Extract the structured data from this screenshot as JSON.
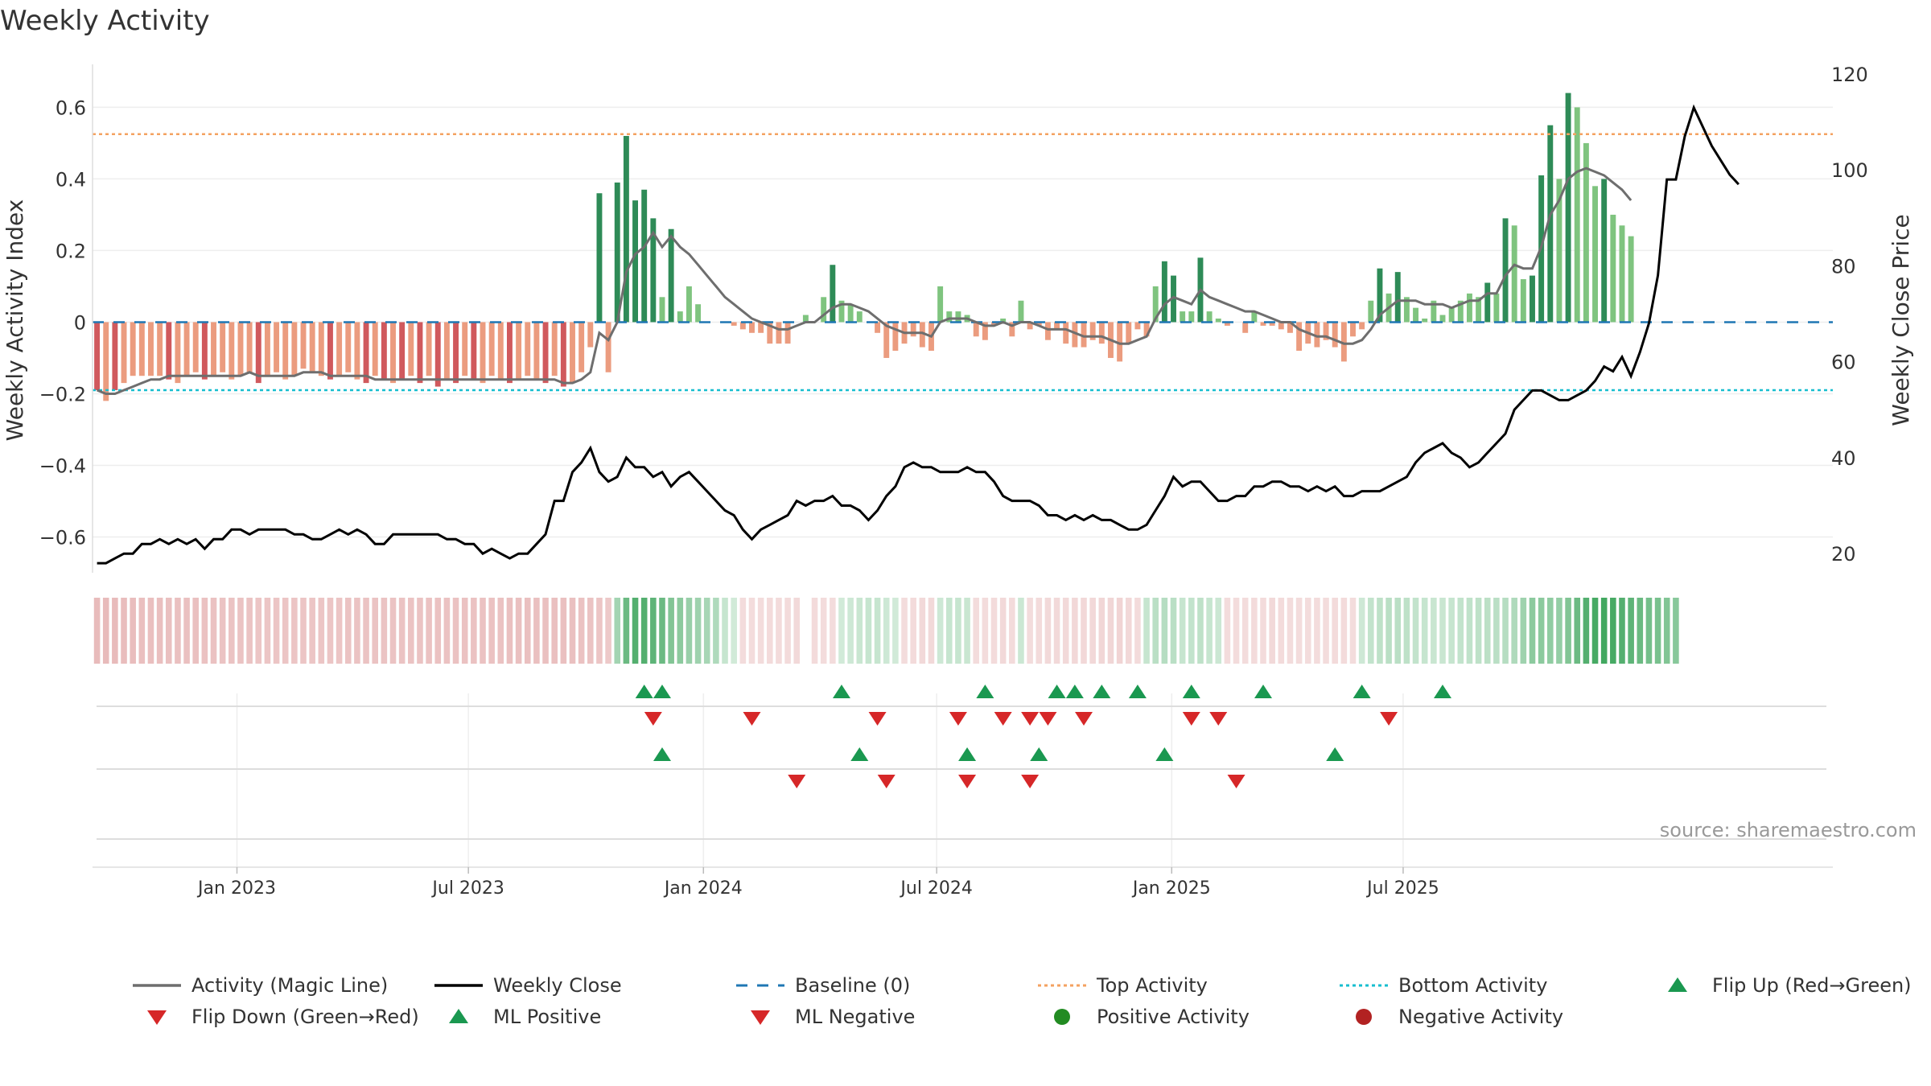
{
  "chart_data": {
    "type": "bar",
    "title": "Weekly Activity",
    "ylabel": "Weekly Activity Index",
    "y2label": "Weekly Close Price",
    "ylim": [
      -0.7,
      0.72
    ],
    "y2lim": [
      16,
      122
    ],
    "yticks": [
      -0.6,
      -0.4,
      -0.2,
      0,
      0.2,
      0.4,
      0.6
    ],
    "ytick_labels": [
      "−0.6",
      "−0.4",
      "−0.2",
      "0",
      "0.2",
      "0.4",
      "0.6"
    ],
    "y2ticks": [
      20,
      40,
      60,
      80,
      100,
      120
    ],
    "y2tick_labels": [
      "20",
      "40",
      "60",
      "80",
      "100",
      "120"
    ],
    "x_weeks": 194,
    "first_week": "2022-09-12",
    "xticks": [
      {
        "label": "Jan 2023",
        "week": 16.1
      },
      {
        "label": "Jul 2023",
        "week": 41.9
      },
      {
        "label": "Jan 2024",
        "week": 68.1
      },
      {
        "label": "Jul 2024",
        "week": 94.1
      },
      {
        "label": "Jan 2025",
        "week": 120.3
      },
      {
        "label": "Jul 2025",
        "week": 146.1
      }
    ],
    "top_activity": 0.525,
    "bottom_activity": -0.19,
    "baseline": 0,
    "activity": [
      -0.19,
      -0.22,
      -0.19,
      -0.17,
      -0.15,
      -0.15,
      -0.15,
      -0.15,
      -0.16,
      -0.17,
      -0.15,
      -0.14,
      -0.16,
      -0.15,
      -0.14,
      -0.16,
      -0.15,
      -0.14,
      -0.17,
      -0.15,
      -0.14,
      -0.16,
      -0.15,
      -0.13,
      -0.14,
      -0.15,
      -0.16,
      -0.15,
      -0.14,
      -0.16,
      -0.17,
      -0.15,
      -0.16,
      -0.17,
      -0.16,
      -0.15,
      -0.17,
      -0.15,
      -0.18,
      -0.16,
      -0.17,
      -0.15,
      -0.16,
      -0.17,
      -0.15,
      -0.16,
      -0.17,
      -0.16,
      -0.15,
      -0.16,
      -0.17,
      -0.15,
      -0.18,
      -0.17,
      -0.14,
      -0.07,
      0.36,
      -0.14,
      0.39,
      0.52,
      0.34,
      0.37,
      0.29,
      0.07,
      0.26,
      0.03,
      0.1,
      0.05,
      0,
      0,
      0,
      -0.01,
      -0.02,
      -0.03,
      -0.03,
      -0.06,
      -0.06,
      -0.06,
      0,
      0.02,
      0,
      0.07,
      0.16,
      0.06,
      0.05,
      0.03,
      0,
      -0.03,
      -0.1,
      -0.08,
      -0.06,
      -0.04,
      -0.07,
      -0.08,
      0.1,
      0.03,
      0.03,
      0.02,
      -0.04,
      -0.05,
      -0.01,
      0.01,
      -0.04,
      0.06,
      -0.02,
      -0.01,
      -0.05,
      -0.02,
      -0.06,
      -0.07,
      -0.07,
      -0.05,
      -0.06,
      -0.1,
      -0.11,
      -0.06,
      -0.02,
      -0.04,
      0.1,
      0.17,
      0.13,
      0.03,
      0.03,
      0.18,
      0.03,
      0.01,
      -0.01,
      0,
      -0.03,
      0.03,
      -0.01,
      -0.01,
      -0.02,
      -0.03,
      -0.08,
      -0.06,
      -0.07,
      -0.05,
      -0.07,
      -0.11,
      -0.04,
      -0.02,
      0.06,
      0.15,
      0.08,
      0.14,
      0.07,
      0.04,
      0.01,
      0.06,
      0.02,
      0.04,
      0.06,
      0.08,
      0.07,
      0.11,
      0.08,
      0.29,
      0.27,
      0.12,
      0.13,
      0.41,
      0.55,
      0.4,
      0.64,
      0.6,
      0.5,
      0.38,
      0.4,
      0.3,
      0.27,
      0.24
    ],
    "magic_line": [
      -0.19,
      -0.2,
      -0.2,
      -0.19,
      -0.18,
      -0.17,
      -0.16,
      -0.16,
      -0.15,
      -0.15,
      -0.15,
      -0.15,
      -0.15,
      -0.15,
      -0.15,
      -0.15,
      -0.15,
      -0.14,
      -0.15,
      -0.15,
      -0.15,
      -0.15,
      -0.15,
      -0.14,
      -0.14,
      -0.14,
      -0.15,
      -0.15,
      -0.15,
      -0.15,
      -0.15,
      -0.16,
      -0.16,
      -0.16,
      -0.16,
      -0.16,
      -0.16,
      -0.16,
      -0.16,
      -0.16,
      -0.16,
      -0.16,
      -0.16,
      -0.16,
      -0.16,
      -0.16,
      -0.16,
      -0.16,
      -0.16,
      -0.16,
      -0.16,
      -0.16,
      -0.17,
      -0.17,
      -0.16,
      -0.14,
      -0.03,
      -0.05,
      0,
      0.14,
      0.19,
      0.21,
      0.25,
      0.21,
      0.24,
      0.21,
      0.19,
      0.16,
      0.13,
      0.1,
      0.07,
      0.05,
      0.03,
      0.01,
      0,
      -0.01,
      -0.02,
      -0.02,
      -0.01,
      0,
      0,
      0.02,
      0.04,
      0.05,
      0.05,
      0.04,
      0.03,
      0.01,
      -0.01,
      -0.02,
      -0.03,
      -0.03,
      -0.03,
      -0.04,
      0,
      0.01,
      0.01,
      0.01,
      0,
      -0.01,
      -0.01,
      0,
      -0.01,
      0,
      0,
      -0.01,
      -0.02,
      -0.02,
      -0.02,
      -0.03,
      -0.04,
      -0.04,
      -0.04,
      -0.05,
      -0.06,
      -0.06,
      -0.05,
      -0.04,
      0.01,
      0.05,
      0.07,
      0.06,
      0.05,
      0.09,
      0.07,
      0.06,
      0.05,
      0.04,
      0.03,
      0.03,
      0.02,
      0.01,
      0,
      0,
      -0.02,
      -0.03,
      -0.04,
      -0.04,
      -0.05,
      -0.06,
      -0.06,
      -0.05,
      -0.02,
      0.02,
      0.04,
      0.06,
      0.06,
      0.06,
      0.05,
      0.05,
      0.05,
      0.04,
      0.05,
      0.06,
      0.06,
      0.08,
      0.08,
      0.13,
      0.16,
      0.15,
      0.15,
      0.21,
      0.3,
      0.34,
      0.4,
      0.42,
      0.43,
      0.42,
      0.41,
      0.39,
      0.37,
      0.34
    ],
    "weekly_close": [
      18,
      18,
      19,
      20,
      20,
      22,
      22,
      23,
      22,
      23,
      22,
      23,
      21,
      23,
      23,
      25,
      25,
      24,
      25,
      25,
      25,
      25,
      24,
      24,
      23,
      23,
      24,
      25,
      24,
      25,
      24,
      22,
      22,
      24,
      24,
      24,
      24,
      24,
      24,
      23,
      23,
      22,
      22,
      20,
      21,
      20,
      19,
      20,
      20,
      22,
      24,
      31,
      31,
      37,
      39,
      42,
      37,
      35,
      36,
      40,
      38,
      38,
      36,
      37,
      34,
      36,
      37,
      35,
      33,
      31,
      29,
      28,
      25,
      23,
      25,
      26,
      27,
      28,
      31,
      30,
      31,
      31,
      32,
      30,
      30,
      29,
      27,
      29,
      32,
      34,
      38,
      39,
      38,
      38,
      37,
      37,
      37,
      38,
      37,
      37,
      35,
      32,
      31,
      31,
      31,
      30,
      28,
      28,
      27,
      28,
      27,
      28,
      27,
      27,
      26,
      25,
      25,
      26,
      29,
      32,
      36,
      34,
      35,
      35,
      33,
      31,
      31,
      32,
      32,
      34,
      34,
      35,
      35,
      34,
      34,
      33,
      34,
      33,
      34,
      32,
      32,
      33,
      33,
      33,
      34,
      35,
      36,
      39,
      41,
      42,
      43,
      41,
      40,
      38,
      39,
      41,
      43,
      45,
      50,
      52,
      54,
      54,
      53,
      52,
      52,
      53,
      54,
      56,
      59,
      58,
      61,
      57,
      62,
      68,
      78,
      98,
      98,
      107,
      113,
      109,
      105,
      102,
      99,
      97
    ],
    "heat_strip": [
      -0.58,
      -0.58,
      -0.56,
      -0.55,
      -0.54,
      -0.53,
      -0.52,
      -0.52,
      -0.5,
      -0.49,
      -0.48,
      -0.48,
      -0.47,
      -0.46,
      -0.45,
      -0.45,
      -0.44,
      -0.43,
      -0.42,
      -0.42,
      -0.42,
      -0.42,
      -0.41,
      -0.41,
      -0.41,
      -0.42,
      -0.42,
      -0.42,
      -0.43,
      -0.43,
      -0.43,
      -0.44,
      -0.44,
      -0.44,
      -0.45,
      -0.45,
      -0.45,
      -0.46,
      -0.46,
      -0.46,
      -0.46,
      -0.46,
      -0.47,
      -0.47,
      -0.47,
      -0.47,
      -0.48,
      -0.48,
      -0.48,
      -0.48,
      -0.48,
      -0.48,
      -0.48,
      -0.48,
      -0.47,
      -0.45,
      -0.4,
      -0.35,
      0.2,
      0.45,
      0.55,
      0.55,
      0.5,
      0.45,
      0.35,
      0.3,
      0.25,
      0.22,
      0.18,
      0.15,
      0.05,
      0,
      -0.02,
      -0.03,
      -0.04,
      -0.05,
      -0.06,
      -0.06,
      -0.07,
      null,
      -0.05,
      -0.04,
      -0.02,
      0,
      0.02,
      0.04,
      0.05,
      0.05,
      0.02,
      0,
      -0.02,
      -0.05,
      -0.07,
      -0.08,
      0.02,
      0.05,
      0.05,
      0.04,
      -0.02,
      -0.03,
      -0.05,
      -0.07,
      -0.05,
      0.03,
      -0.02,
      -0.06,
      -0.08,
      -0.07,
      -0.08,
      -0.1,
      -0.12,
      -0.12,
      -0.13,
      -0.14,
      -0.15,
      -0.12,
      -0.05,
      0.05,
      0.1,
      0.12,
      0.1,
      0.05,
      0.06,
      0.08,
      0.05,
      0.03,
      -0.02,
      -0.04,
      -0.04,
      -0.05,
      -0.06,
      -0.07,
      -0.05,
      -0.04,
      -0.03,
      -0.02,
      -0.03,
      -0.04,
      -0.05,
      -0.05,
      -0.03,
      0.02,
      0.06,
      0.08,
      0.1,
      0.1,
      0.08,
      0.06,
      0.05,
      0.04,
      0.04,
      0.05,
      0.06,
      0.07,
      0.08,
      0.09,
      0.1,
      0.12,
      0.15,
      0.22,
      0.3,
      0.3,
      0.28,
      0.26,
      0.35,
      0.45,
      0.55,
      0.6,
      0.62,
      0.6,
      0.55,
      0.5,
      0.45,
      0.4,
      0.38,
      0.35,
      0.32
    ],
    "flip_up": [
      61,
      63,
      83,
      99,
      107,
      109,
      112,
      116,
      122,
      130,
      141,
      150
    ],
    "flip_down": [
      62,
      73,
      87,
      96,
      101,
      104,
      106,
      110,
      122,
      125,
      144
    ],
    "ml_positive": [
      63,
      85,
      97,
      105,
      119,
      138
    ],
    "ml_negative": [
      78,
      88,
      97,
      104,
      127
    ],
    "legend": [
      {
        "label": "Activity (Magic Line)",
        "kind": "line",
        "color": "#6e6e6e"
      },
      {
        "label": "Weekly Close",
        "kind": "line",
        "color": "#000000"
      },
      {
        "label": "Baseline (0)",
        "kind": "dash",
        "color": "#1f77b4"
      },
      {
        "label": "Top Activity",
        "kind": "dot",
        "color": "#f4a261"
      },
      {
        "label": "Bottom Activity",
        "kind": "dot",
        "color": "#17becf"
      },
      {
        "label": "Flip Up (Red→Green)",
        "kind": "tri-up",
        "color": "#1a9850"
      },
      {
        "label": "Flip Down (Green→Red)",
        "kind": "tri-down",
        "color": "#d62728"
      },
      {
        "label": "ML Positive",
        "kind": "tri-up",
        "color": "#1a9850"
      },
      {
        "label": "ML Negative",
        "kind": "tri-down",
        "color": "#d62728"
      },
      {
        "label": "Positive Activity",
        "kind": "circle",
        "color": "#228b22"
      },
      {
        "label": "Negative Activity",
        "kind": "circle",
        "color": "#b22222"
      }
    ],
    "source": "source: sharemaestro.com",
    "colors": {
      "pos_dark": "#2e8b57",
      "pos_light": "#7fc47f",
      "neg_dark": "#d0595d",
      "neg_light": "#eb9c7f",
      "magic_line": "#6e6e6e",
      "close": "#000000",
      "baseline": "#1f77b4",
      "top": "#f4a261",
      "bottom": "#17becf",
      "up_marker": "#1a9850",
      "down_marker": "#d62728"
    }
  }
}
